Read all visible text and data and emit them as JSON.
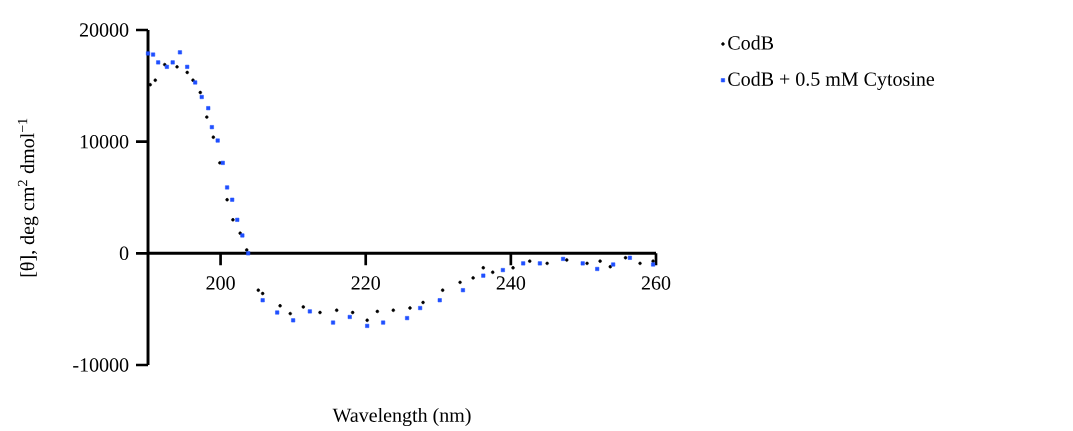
{
  "chart_data": {
    "type": "scatter",
    "xlabel": "Wavelength (nm)",
    "ylabel": "[θ], deg cm$^{2}$ dmol$^{−1}$",
    "xlim": [
      190,
      260
    ],
    "xticks": [
      {
        "value": 190,
        "label": null
      },
      200,
      220,
      240,
      260
    ],
    "ylim": [
      -10000,
      20000
    ],
    "yticks": [
      -10000,
      0,
      10000,
      20000
    ],
    "legend": "top right",
    "grid": false,
    "series": [
      {
        "name": "CodB",
        "color": "#000000",
        "marker": "circle",
        "x": [
          190.3,
          191,
          192.3,
          194,
          195.4,
          196.2,
          197.2,
          198.1,
          199,
          199.9,
          200.9,
          201.7,
          202.7,
          203.6,
          205.2,
          205.8,
          208.2,
          209.6,
          211.4,
          213.7,
          216,
          218.2,
          220.2,
          221.6,
          223.8,
          226.1,
          227.9,
          230.6,
          233,
          234.8,
          236.2,
          237.5,
          240.3,
          242.6,
          245,
          247.7,
          250.5,
          252.3,
          253.7,
          255.8,
          257.8,
          259.6
        ],
        "values": [
          15100,
          15500,
          16900,
          16700,
          16200,
          15500,
          14400,
          12200,
          10400,
          8100,
          4800,
          3000,
          1800,
          300,
          -3300,
          -3600,
          -4700,
          -5400,
          -4800,
          -5300,
          -5100,
          -5300,
          -6000,
          -5200,
          -5100,
          -4900,
          -4400,
          -3300,
          -2600,
          -2200,
          -1300,
          -1700,
          -1300,
          -700,
          -900,
          -600,
          -900,
          -700,
          -1200,
          -400,
          -900,
          -700
        ]
      },
      {
        "name": "CodB + 0.5 mM Cytosine",
        "color": "#1f4fff",
        "marker": "square",
        "x": [
          190,
          190.7,
          191.4,
          192.6,
          193.4,
          194.4,
          195.4,
          196.5,
          197.4,
          198.3,
          198.8,
          199.6,
          200.3,
          200.9,
          201.6,
          202.3,
          203,
          203.8,
          205.8,
          207.8,
          210,
          212.3,
          215.5,
          217.8,
          220.2,
          222.4,
          225.7,
          227.5,
          230.2,
          233.4,
          236.2,
          238.9,
          241.7,
          244,
          247.2,
          249.9,
          251.9,
          254.1,
          256.4,
          259.6
        ],
        "values": [
          17900,
          17800,
          17100,
          16700,
          17100,
          18000,
          16700,
          15300,
          14000,
          13000,
          11300,
          10100,
          8100,
          5900,
          4800,
          3000,
          1600,
          0,
          -4200,
          -5300,
          -6000,
          -5200,
          -6200,
          -5700,
          -6500,
          -6200,
          -5800,
          -4900,
          -4200,
          -3300,
          -2000,
          -1500,
          -900,
          -900,
          -500,
          -900,
          -1400,
          -1000,
          -400,
          -1000
        ]
      }
    ]
  }
}
